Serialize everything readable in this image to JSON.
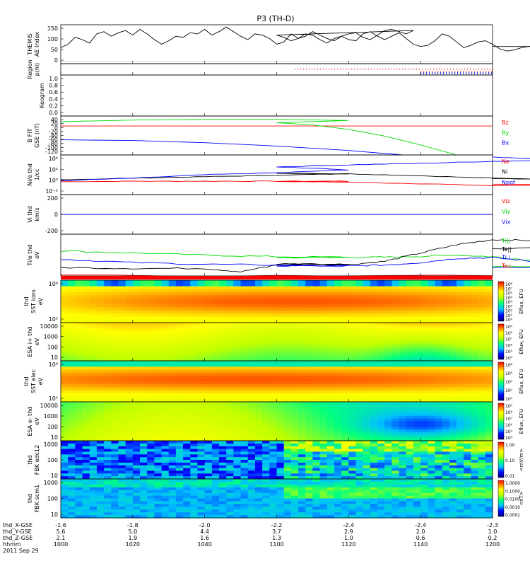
{
  "title": "P3 (TH-D)",
  "colors": {
    "red": "#ff0000",
    "green": "#00dd00",
    "blue": "#0000ff",
    "black": "#000000",
    "ae": "#000000",
    "region_red": "#dd0000",
    "region_blue": "#0000dd"
  },
  "chart_data": [
    {
      "type": "line",
      "id": "ae",
      "ylabel_lines": [
        "THEMIS",
        "AE Index"
      ],
      "yticks": [
        "150",
        "100",
        "50",
        "0"
      ],
      "ylim": [
        -10,
        160
      ],
      "x": [
        1000,
        1002,
        1004,
        1006,
        1008,
        1010,
        1012,
        1014,
        1016,
        1018,
        1020,
        1022,
        1024,
        1026,
        1028,
        1030,
        1032,
        1034,
        1036,
        1038,
        1040,
        1042,
        1044,
        1046,
        1048,
        1050,
        1052,
        1054,
        1056,
        1058,
        1060,
        1062,
        1064,
        1066,
        1068,
        1070,
        1072,
        1074,
        1076,
        1078,
        1080,
        1082,
        1084,
        1086,
        1088,
        1090,
        1092,
        1094,
        1096,
        1098,
        1100,
        1102,
        1104,
        1106,
        1108,
        1110,
        1112,
        1114,
        1116,
        1118,
        1120,
        1122,
        1124,
        1126,
        1128,
        1130,
        1132,
        1134,
        1136,
        1138,
        1140,
        1142,
        1144,
        1146,
        1148,
        1150,
        1152,
        1154,
        1156,
        1158,
        1160,
        1162,
        1164,
        1166,
        1168,
        1170,
        1172,
        1174,
        1176,
        1178,
        1180,
        1182,
        1184,
        1186,
        1188,
        1190,
        1192,
        1194,
        1196,
        1198,
        1200
      ],
      "values": [
        60,
        75,
        105,
        95,
        80,
        120,
        130,
        110,
        125,
        135,
        115,
        140,
        120,
        95,
        75,
        90,
        110,
        105,
        125,
        120,
        140,
        115,
        130,
        150,
        130,
        110,
        95,
        120,
        115,
        100,
        75,
        85,
        120,
        100,
        110,
        130,
        115,
        100,
        90,
        110,
        120,
        125,
        105,
        95,
        115,
        135,
        140,
        130,
        120,
        135,
        115,
        105,
        90,
        100,
        120,
        115,
        95,
        80,
        100,
        110,
        95,
        90,
        120,
        130,
        110,
        95,
        110,
        125,
        100,
        75,
        65,
        70,
        90,
        120,
        110,
        85,
        60,
        70,
        85,
        90,
        75,
        55,
        45,
        50,
        60,
        65,
        70,
        80,
        75,
        65,
        70,
        85,
        80,
        70,
        60,
        55,
        50,
        55,
        60,
        65,
        65
      ]
    },
    {
      "type": "scatter",
      "id": "region",
      "ylabel_lines": [
        "Region",
        "p(hi)"
      ],
      "xrange": [
        1105,
        1200
      ]
    },
    {
      "type": "heatmap",
      "id": "keogram",
      "ylabel": "Keogram",
      "yticks": [
        "1.0",
        "0.8",
        "0.6",
        "0.4",
        "0.2",
        "0.0"
      ],
      "ylim": [
        0,
        1
      ]
    },
    {
      "type": "line",
      "id": "bfield",
      "ylabel_lines": [
        "B FIT",
        "GSE (nT)"
      ],
      "yticks": [
        "40",
        "20",
        "0",
        "-20",
        "-40",
        "-60",
        "-80",
        "-100",
        "-120"
      ],
      "ylim": [
        -130,
        45
      ],
      "series": [
        {
          "name": "Bz",
          "color": "#ff0000",
          "x": [
            1000,
            1200
          ],
          "values": [
            0,
            0
          ]
        },
        {
          "name": "By",
          "color": "#00dd00",
          "x": [
            1000,
            1020,
            1040,
            1060,
            1080,
            1100,
            1110,
            1120,
            1130,
            1140,
            1150
          ],
          "values": [
            20,
            27,
            30,
            30,
            25,
            15,
            5,
            -15,
            -45,
            -85,
            -130
          ]
        },
        {
          "name": "Bx",
          "color": "#0000ff",
          "x": [
            1000,
            1020,
            1040,
            1060,
            1080,
            1095
          ],
          "values": [
            -62,
            -65,
            -75,
            -90,
            -110,
            -130
          ]
        }
      ]
    },
    {
      "type": "line",
      "id": "density",
      "ylabel_lines": [
        "Ni/e thd",
        "1/cc"
      ],
      "yticks": [
        "10⁴",
        "10²",
        "10⁰",
        "10⁻²"
      ],
      "log": true,
      "ylim": [
        -3,
        5
      ],
      "series": [
        {
          "name": "Ne",
          "color": "#ff0000",
          "x": [
            1000,
            1020,
            1040,
            1060,
            1080,
            1100,
            1120,
            1140,
            1160,
            1180,
            1200
          ],
          "values": [
            -0.4,
            -0.3,
            -0.3,
            -0.3,
            -0.3,
            -0.35,
            -0.5,
            -0.8,
            -1.2,
            -1.1,
            -0.9
          ]
        },
        {
          "name": "Ni",
          "color": "#000000",
          "x": [
            1000,
            1020,
            1040,
            1060,
            1080,
            1100,
            1120,
            1140,
            1160,
            1180,
            1200
          ],
          "values": [
            0.0,
            0.3,
            0.6,
            0.9,
            1.2,
            1.3,
            1.2,
            0.8,
            0.3,
            0.1,
            0.2
          ]
        },
        {
          "name": "Npot",
          "color": "#0000ff",
          "x": [
            1000,
            1020,
            1040,
            1060,
            1080,
            1100,
            1120,
            1140,
            1160,
            1180,
            1200
          ],
          "values": [
            -0.2,
            0.3,
            1.0,
            1.4,
            2.0,
            2.6,
            3.0,
            3.3,
            3.7,
            4.0,
            4.6
          ]
        }
      ]
    },
    {
      "type": "line",
      "id": "velocity",
      "ylabel_lines": [
        "Vi thd",
        "km/s"
      ],
      "yticks": [
        "200",
        "0",
        "-200"
      ],
      "ylim": [
        -300,
        300
      ],
      "series": [
        {
          "name": "Viz",
          "color": "#ff0000",
          "x": [
            1000,
            1200
          ],
          "values": [
            0,
            0
          ]
        },
        {
          "name": "Viy",
          "color": "#00dd00",
          "x": [
            1000,
            1200
          ],
          "values": [
            0,
            0
          ]
        },
        {
          "name": "Vix",
          "color": "#0000ff",
          "x": [
            1000,
            1200
          ],
          "values": [
            0,
            0
          ]
        }
      ]
    },
    {
      "type": "line",
      "id": "temperature",
      "ylabel_lines": [
        "Ti/e thd",
        "eV"
      ],
      "ylim": [
        0,
        10
      ],
      "series": [
        {
          "name": "Ti||",
          "color": "#00dd00",
          "x": [
            1000,
            1020,
            1040,
            1060,
            1080,
            1100,
            1120,
            1130,
            1140,
            1150,
            1160,
            1170,
            1180,
            1190,
            1200
          ],
          "values": [
            6.0,
            5.5,
            5.0,
            4.6,
            4.5,
            4.4,
            4.4,
            4.5,
            4.7,
            5.0,
            4.6,
            3.8,
            3.0,
            2.5,
            2.2
          ]
        },
        {
          "name": "Te||",
          "color": "#000000",
          "x": [
            1000,
            1020,
            1040,
            1050,
            1060,
            1080,
            1100,
            1120,
            1130,
            1140,
            1150,
            1160,
            1170,
            1180,
            1190,
            1200
          ],
          "values": [
            2.0,
            1.8,
            1.8,
            1.0,
            2.6,
            2.8,
            2.9,
            2.7,
            3.5,
            5.5,
            7.5,
            8.7,
            8.5,
            7.8,
            7.2,
            6.5
          ]
        },
        {
          "name": "Ti⊥",
          "color": "#0000ff",
          "x": [
            1000,
            1020,
            1040,
            1060,
            1080,
            1100,
            1120,
            1130,
            1140,
            1150,
            1160,
            1170,
            1180,
            1190,
            1200
          ],
          "values": [
            4.0,
            3.2,
            2.8,
            2.6,
            2.4,
            2.4,
            2.4,
            2.6,
            3.2,
            4.2,
            4.4,
            3.6,
            2.8,
            2.3,
            2.0
          ]
        },
        {
          "name": "Te⊥",
          "color": "#ff0000",
          "x": [
            1000,
            1200
          ],
          "values": [
            0.05,
            0.05
          ]
        }
      ]
    },
    {
      "type": "heatmap",
      "id": "sst_ions",
      "ylabel_lines": [
        "thd",
        "SST ions",
        "eV"
      ],
      "yticks": [
        "10⁶",
        "10⁵"
      ],
      "cbar_ticks": [
        "10⁸",
        "10⁷",
        "10⁶",
        "10⁵",
        "10⁴",
        "10³",
        "10²",
        "10¹",
        "10⁰"
      ],
      "cbar_label": "Eflux, EFU"
    },
    {
      "type": "heatmap",
      "id": "esa_ions",
      "ylabel_lines": [
        "ESA i+ thd",
        "eV"
      ],
      "yticks": [
        "10000",
        "1000",
        "100",
        "10"
      ],
      "cbar_ticks": [
        "10⁹",
        "10⁸",
        "10⁷",
        "10⁶",
        "10⁵",
        "10⁴"
      ],
      "cbar_label": "Eflux, EFU"
    },
    {
      "type": "heatmap",
      "id": "sst_elec",
      "ylabel_lines": [
        "thd",
        "SST elec",
        "eV"
      ],
      "yticks": [
        "10⁶",
        "10⁵"
      ],
      "cbar_ticks": [
        "10⁸",
        "10⁶",
        "10⁴",
        "10²",
        "10⁰"
      ],
      "cbar_label": "Eflux, EFU"
    },
    {
      "type": "heatmap",
      "id": "esa_elec",
      "ylabel_lines": [
        "ESA e- thd",
        "eV"
      ],
      "yticks": [
        "10000",
        "1000",
        "100",
        "10"
      ],
      "cbar_ticks": [
        "10⁹",
        "10⁸",
        "10⁷",
        "10⁶",
        "10⁵",
        "10⁴"
      ],
      "cbar_label": "Eflux, EFU"
    },
    {
      "type": "heatmap",
      "id": "fbk_edc12",
      "ylabel_lines": [
        "thd",
        "FBK edc12"
      ],
      "yticks": [
        "1000",
        "100",
        "10"
      ],
      "cbar_ticks": [
        "1.00",
        "0.10",
        "0.01"
      ],
      "cbar_label": "<mV/m>"
    },
    {
      "type": "heatmap",
      "id": "fbk_scm1",
      "ylabel_lines": [
        "thd",
        "FBK scm1"
      ],
      "yticks": [
        "1000",
        "100",
        "10"
      ],
      "cbar_ticks": [
        "1.0000",
        "0.1000",
        "0.0100",
        "0.0010",
        "0.0001"
      ],
      "cbar_label": "<nT>"
    }
  ],
  "legends": {
    "bfield": [
      {
        "text": "Bz",
        "color": "#ff0000"
      },
      {
        "text": "By",
        "color": "#00dd00"
      },
      {
        "text": "Bx",
        "color": "#0000ff"
      }
    ],
    "density": [
      {
        "text": "Ne",
        "color": "#ff0000"
      },
      {
        "text": "Ni",
        "color": "#000000"
      },
      {
        "text": "Npot",
        "color": "#0000ff"
      }
    ],
    "velocity": [
      {
        "text": "Viz",
        "color": "#ff0000"
      },
      {
        "text": "Viy",
        "color": "#00dd00"
      },
      {
        "text": "Vix",
        "color": "#0000ff"
      }
    ],
    "temperature": [
      {
        "text": "Ti||",
        "color": "#00dd00"
      },
      {
        "text": "Te||",
        "color": "#000000"
      },
      {
        "text": "Ti⊥",
        "color": "#0000ff"
      },
      {
        "text": "Te⊥",
        "color": "#ff0000"
      }
    ]
  },
  "xaxis": {
    "row_labels": [
      "thd_X-GSE",
      "thd_Y-GSE",
      "thd_Z-GSE",
      "hhmm",
      "2011 Sep 29"
    ],
    "ticks": [
      {
        "values": [
          "-1.6",
          "5.6",
          "2.1",
          "1000"
        ]
      },
      {
        "values": [
          "-1.8",
          "5.0",
          "1.9",
          "1020"
        ]
      },
      {
        "values": [
          "-2.0",
          "4.4",
          "1.6",
          "1040"
        ]
      },
      {
        "values": [
          "-2.2",
          "3.7",
          "1.3",
          "1100"
        ]
      },
      {
        "values": [
          "-2.4",
          "2.9",
          "1.0",
          "1120"
        ]
      },
      {
        "values": [
          "-2.4",
          "2.0",
          "0.6",
          "1140"
        ]
      },
      {
        "values": [
          "-2.3",
          "1.0",
          "0.2",
          "1200"
        ]
      }
    ]
  }
}
